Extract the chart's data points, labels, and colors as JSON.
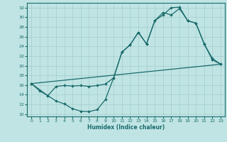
{
  "bg_color": "#c0e4e4",
  "line_color": "#1a6b6b",
  "grid_color": "#a8d0d0",
  "xlabel": "Humidex (Indice chaleur)",
  "xlim": [
    -0.5,
    23.5
  ],
  "ylim": [
    9.5,
    33
  ],
  "yticks": [
    10,
    12,
    14,
    16,
    18,
    20,
    22,
    24,
    26,
    28,
    30,
    32
  ],
  "xticks": [
    0,
    1,
    2,
    3,
    4,
    5,
    6,
    7,
    8,
    9,
    10,
    11,
    12,
    13,
    14,
    15,
    16,
    17,
    18,
    19,
    20,
    21,
    22,
    23
  ],
  "line1_x": [
    0,
    1,
    2,
    3,
    4,
    5,
    6,
    7,
    8,
    9,
    10,
    11,
    12,
    13,
    14,
    15,
    16,
    17,
    18,
    19,
    20,
    21,
    22,
    23
  ],
  "line1_y": [
    16.3,
    14.8,
    13.8,
    12.7,
    12.1,
    11.1,
    10.6,
    10.5,
    10.9,
    13.0,
    17.5,
    22.8,
    24.3,
    26.9,
    24.5,
    29.3,
    30.5,
    32.0,
    32.1,
    29.3,
    28.8,
    24.5,
    21.2,
    20.3
  ],
  "line2_x": [
    0,
    2,
    3,
    4,
    5,
    6,
    7,
    8,
    9,
    10,
    11,
    12,
    13,
    14,
    15,
    16,
    17,
    18,
    19,
    20,
    21,
    22,
    23
  ],
  "line2_y": [
    16.3,
    13.8,
    15.7,
    15.9,
    15.8,
    15.9,
    15.7,
    15.9,
    16.2,
    17.5,
    22.8,
    24.3,
    26.9,
    24.5,
    29.3,
    31.0,
    30.5,
    31.8,
    29.3,
    28.8,
    24.5,
    21.5,
    20.3
  ],
  "line3_x": [
    0,
    23
  ],
  "line3_y": [
    16.3,
    20.3
  ]
}
